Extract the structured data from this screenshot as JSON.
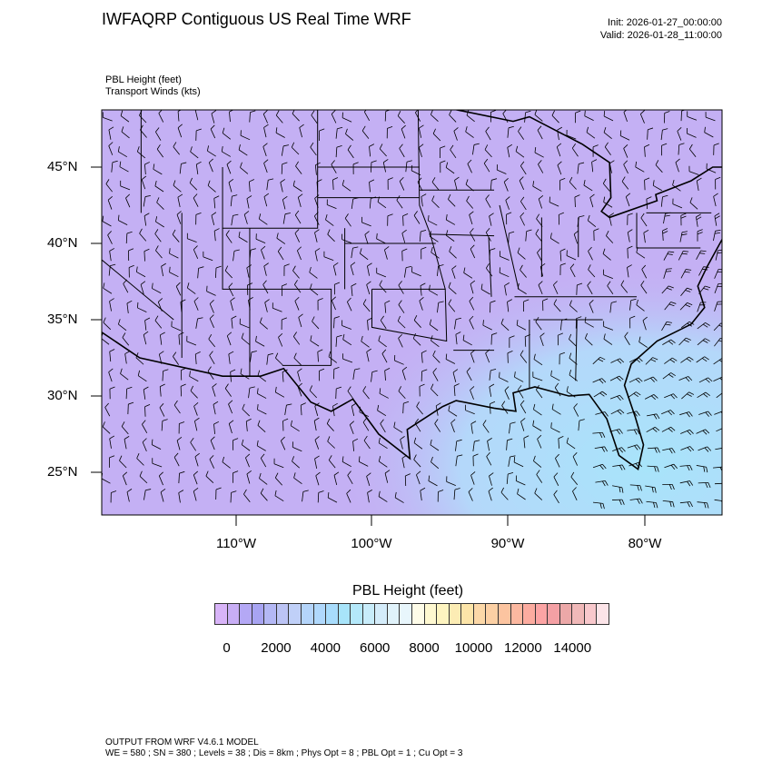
{
  "header": {
    "title": "IWFAQRP Contiguous US Real Time WRF",
    "init": "Init: 2026-01-27_00:00:00",
    "valid": "Valid: 2026-01-28_11:00:00",
    "field1": "PBL Height   (feet)",
    "field2": "Transport Winds   (kts)"
  },
  "map": {
    "lat_labels": [
      "45°N",
      "40°N",
      "35°N",
      "30°N",
      "25°N"
    ],
    "lon_labels": [
      "110°W",
      "100°W",
      "90°W",
      "80°W"
    ],
    "background_colors": {
      "land": "#c4b0f4",
      "ocean_se": "#b0e0fa"
    }
  },
  "colorbar": {
    "title": "PBL Height  (feet)",
    "labels": [
      "0",
      "2000",
      "4000",
      "6000",
      "8000",
      "10000",
      "12000",
      "14000"
    ],
    "colors": [
      "#d8b4f8",
      "#c8aef5",
      "#b4a8f5",
      "#a8a4f2",
      "#b4b8f5",
      "#bcc4f5",
      "#c0d0f8",
      "#b4d4fa",
      "#b0d8fc",
      "#a8dcfc",
      "#a8e4fa",
      "#b4e8fa",
      "#c8ecfa",
      "#d4ecfa",
      "#e0f2fa",
      "#e8f6fc",
      "#fefce8",
      "#fef8d0",
      "#fef4c0",
      "#fcecb4",
      "#fce4a8",
      "#fcd8a8",
      "#fcd0a4",
      "#fcc4a0",
      "#fcb8a0",
      "#fcaca0",
      "#fca4a4",
      "#f4a0a4",
      "#eca8a8",
      "#f0b8b8",
      "#f8c8cc",
      "#fce4e8"
    ]
  },
  "footer": {
    "line1": "OUTPUT FROM WRF V4.6.1 MODEL",
    "line2": "WE = 580 ; SN = 380 ; Levels = 38 ; Dis = 8km ; Phys Opt = 8 ; PBL Opt = 1 ; Cu Opt = 3"
  }
}
